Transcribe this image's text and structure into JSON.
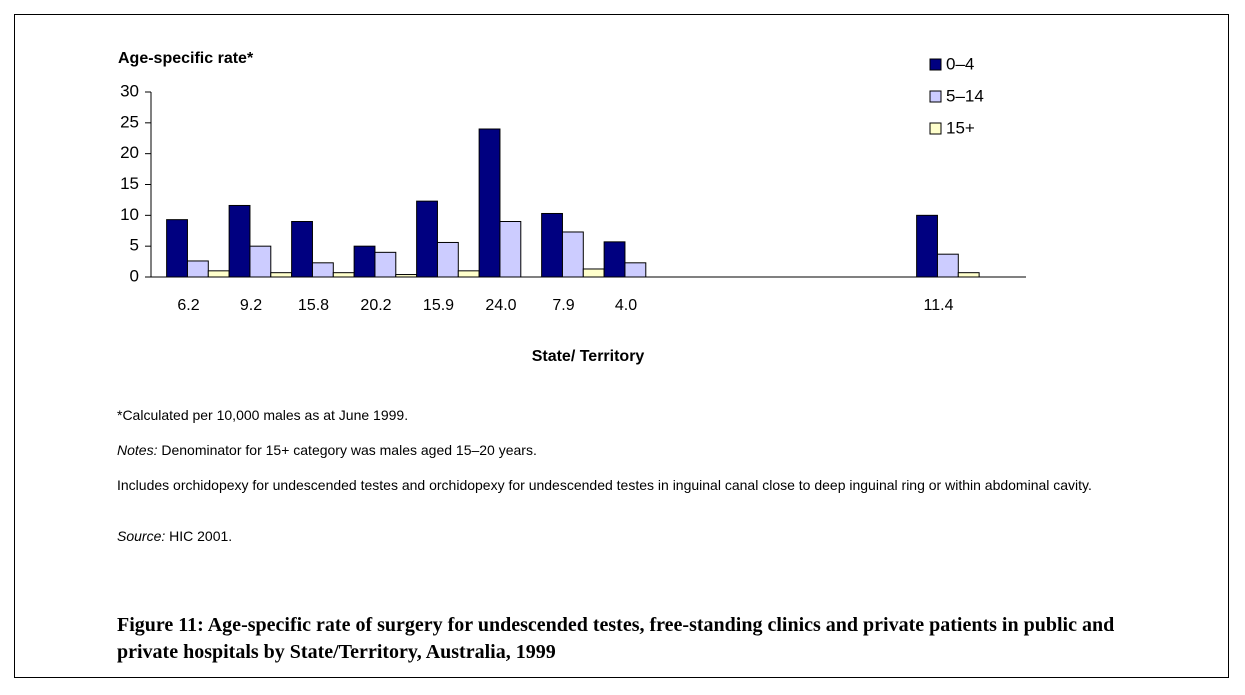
{
  "chart_data": {
    "type": "bar",
    "y_label": "Age-specific rate*",
    "x_label": "State/ Territory",
    "categories": [
      "6.2",
      "9.2",
      "15.8",
      "20.2",
      "15.9",
      "24.0",
      "7.9",
      "4.0",
      null,
      null,
      null,
      null,
      "11.4",
      null
    ],
    "series": [
      {
        "name": "0–4",
        "color": "#000080",
        "values": [
          9.3,
          11.6,
          9.0,
          5.0,
          12.3,
          24.0,
          10.3,
          5.7,
          null,
          null,
          null,
          null,
          10.0,
          null
        ]
      },
      {
        "name": "5–14",
        "color": "#ccccff",
        "values": [
          2.6,
          5.0,
          2.3,
          4.0,
          5.6,
          9.0,
          7.3,
          2.3,
          null,
          null,
          null,
          null,
          3.7,
          null
        ]
      },
      {
        "name": "15+",
        "color": "#ffffcc",
        "values": [
          1.0,
          0.7,
          0.7,
          0.4,
          1.0,
          null,
          1.3,
          null,
          null,
          null,
          null,
          null,
          0.7,
          null
        ]
      }
    ],
    "ylim": [
      0,
      30
    ],
    "yticks": [
      0,
      5,
      10,
      15,
      20,
      25,
      30
    ],
    "grid": false,
    "legend": "upper right"
  },
  "notes": [
    {
      "text": "*Calculated per 10,000 males as at June 1999."
    },
    {
      "label": "Notes:",
      "text": " Denominator for 15+ category was males aged 15–20 years."
    },
    {
      "text": "Includes orchidopexy for undescended testes and orchidopexy for undescended testes in inguinal canal close to deep inguinal ring or within abdominal cavity."
    },
    {
      "label": "Source:",
      "text": " HIC 2001."
    }
  ],
  "caption": "Figure 11: Age-specific rate of surgery for undescended testes, free-standing clinics and private patients in public and private hospitals by State/Territory, Australia, 1999"
}
